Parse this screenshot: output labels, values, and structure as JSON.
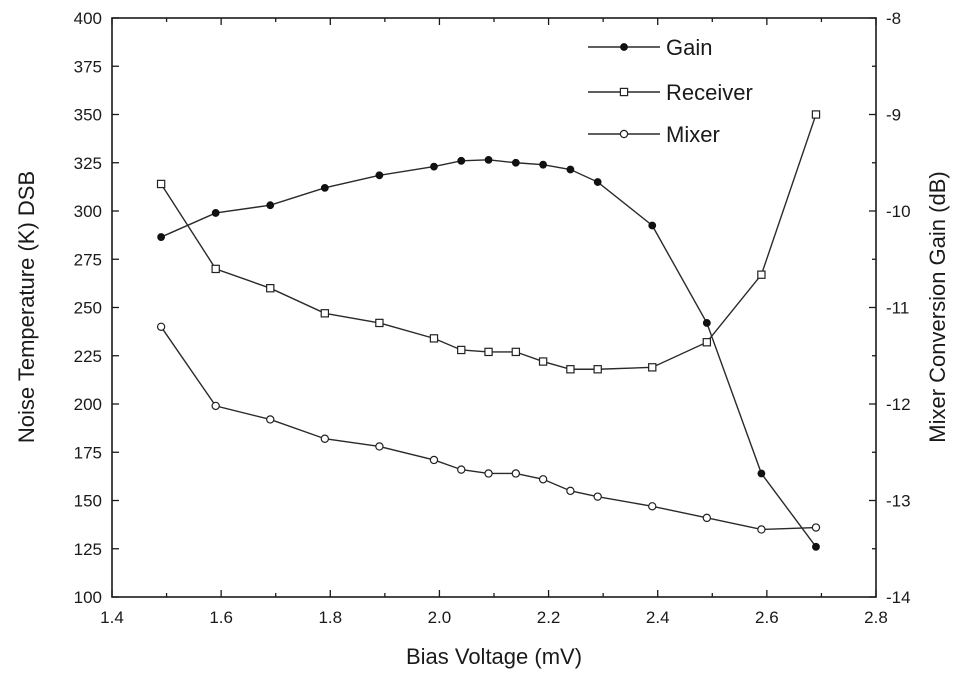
{
  "chart_data": {
    "type": "line",
    "xlabel": "Bias Voltage (mV)",
    "ylabel": "Noise Temperature (K) DSB",
    "y2label": "Mixer Conversion Gain (dB)",
    "xlim": [
      1.4,
      2.8
    ],
    "ylim": [
      100,
      400
    ],
    "y2lim": [
      -14,
      -8
    ],
    "x_ticks": [
      "1.4",
      "1.6",
      "1.8",
      "2.0",
      "2.2",
      "2.4",
      "2.6",
      "2.8"
    ],
    "y_ticks": [
      "100",
      "125",
      "150",
      "175",
      "200",
      "225",
      "250",
      "275",
      "300",
      "325",
      "350",
      "375",
      "400"
    ],
    "y2_ticks": [
      "-14",
      "-13",
      "-12",
      "-11",
      "-10",
      "-9",
      "-8"
    ],
    "grid": false,
    "legend_position": "top-right",
    "series": [
      {
        "name": "Gain",
        "axis": "right",
        "marker": "filled-circle",
        "x": [
          1.49,
          1.59,
          1.69,
          1.79,
          1.89,
          1.99,
          2.04,
          2.09,
          2.14,
          2.19,
          2.24,
          2.29,
          2.39,
          2.49,
          2.59,
          2.69
        ],
        "y": [
          -10.27,
          -10.02,
          -9.94,
          -9.76,
          -9.63,
          -9.54,
          -9.48,
          -9.47,
          -9.5,
          -9.52,
          -9.57,
          -9.7,
          -10.15,
          -11.16,
          -12.72,
          -13.48
        ]
      },
      {
        "name": "Receiver",
        "axis": "left",
        "marker": "open-square",
        "x": [
          1.49,
          1.59,
          1.69,
          1.79,
          1.89,
          1.99,
          2.04,
          2.09,
          2.14,
          2.19,
          2.24,
          2.29,
          2.39,
          2.49,
          2.59,
          2.69
        ],
        "y": [
          314,
          270,
          260,
          247,
          242,
          234,
          228,
          227,
          227,
          222,
          218,
          218,
          219,
          232,
          267,
          350
        ]
      },
      {
        "name": "Mixer",
        "axis": "left",
        "marker": "open-circle",
        "x": [
          1.49,
          1.59,
          1.69,
          1.79,
          1.89,
          1.99,
          2.04,
          2.09,
          2.14,
          2.19,
          2.24,
          2.29,
          2.39,
          2.49,
          2.59,
          2.69
        ],
        "y": [
          240,
          199,
          192,
          182,
          178,
          171,
          166,
          164,
          164,
          161,
          155,
          152,
          147,
          141,
          135,
          136
        ]
      }
    ]
  }
}
